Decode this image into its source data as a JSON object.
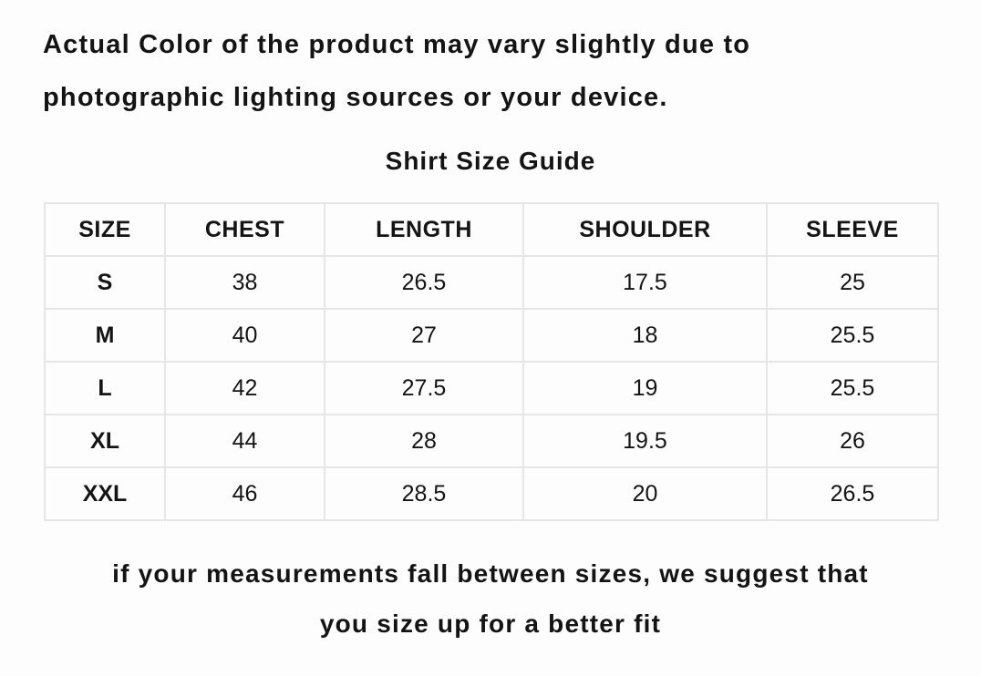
{
  "colors": {
    "background": "#fdfdfd",
    "text": "#141414",
    "table_border": "#e5e7e5"
  },
  "disclaimer": {
    "line1": "Actual Color of the product may vary slightly due to",
    "line2": "photographic lighting sources or your device."
  },
  "title": "Shirt Size Guide",
  "size_table": {
    "headers": [
      "SIZE",
      "CHEST",
      "LENGTH",
      "SHOULDER",
      "SLEEVE"
    ],
    "rows": [
      [
        "S",
        "38",
        "26.5",
        "17.5",
        "25"
      ],
      [
        "M",
        "40",
        "27",
        "18",
        "25.5"
      ],
      [
        "L",
        "42",
        "27.5",
        "19",
        "25.5"
      ],
      [
        "XL",
        "44",
        "28",
        "19.5",
        "26"
      ],
      [
        "XXL",
        "46",
        "28.5",
        "20",
        "26.5"
      ]
    ]
  },
  "footnote": {
    "line1": "if your measurements fall between sizes, we suggest that",
    "line2": "you size up for a better fit"
  }
}
